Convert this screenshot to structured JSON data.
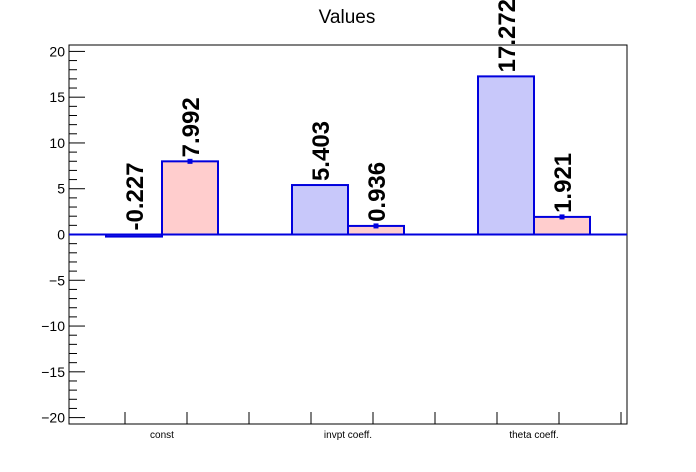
{
  "chart_data": {
    "type": "bar",
    "title": "Values",
    "xlabel": "",
    "ylabel": "",
    "ylim": [
      -20.7,
      20.7
    ],
    "yticks": [
      -20,
      -15,
      -10,
      -5,
      0,
      5,
      10,
      15,
      20
    ],
    "ytick_labels": [
      "−20",
      "−15",
      "−10",
      "−5",
      "0",
      "5",
      "10",
      "15",
      "20"
    ],
    "categories": [
      "const",
      "invpt coeff.",
      "theta coeff."
    ],
    "grid": false,
    "legend": "none",
    "series": [
      {
        "values": [
          -0.227,
          5.403,
          17.272
        ],
        "labels": [
          "-0.227",
          "5.403",
          "17.272"
        ],
        "errors": [
          0.0,
          0.0,
          0.0
        ],
        "fill": "#c8c8fa"
      },
      {
        "values": [
          7.992,
          0.936,
          1.921
        ],
        "labels": [
          "7.992",
          "0.936",
          "1.921"
        ],
        "errors": [
          0.15,
          0.15,
          0.25
        ],
        "fill": "#ffcdcd"
      }
    ],
    "colors": {
      "bar_outline": "#0000dd",
      "axis": "#000000",
      "zero_line": "#0000dd"
    }
  }
}
